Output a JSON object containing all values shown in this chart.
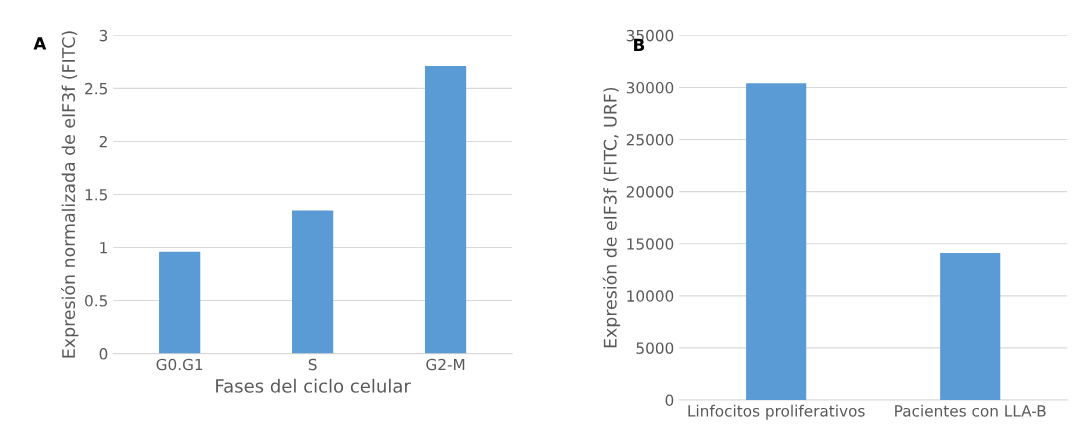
{
  "chart_data": [
    {
      "type": "bar",
      "title": "A",
      "xlabel": "Fases del ciclo celular",
      "ylabel": "Expresión normalizada de eIF3f (FITC)",
      "categories": [
        "G0.G1",
        "S",
        "G2-M"
      ],
      "values": [
        0.96,
        1.35,
        2.71
      ],
      "color": "#5b9bd5",
      "ylim": [
        0,
        3
      ],
      "yticks": [
        0,
        0.5,
        1,
        1.5,
        2,
        2.5,
        3
      ],
      "grid": "y"
    },
    {
      "type": "bar",
      "title": "B",
      "ylabel": "Expresión de eIF3f (FITC, URF)",
      "categories": [
        "Linfocitos proliferativos",
        "Pacientes con LLA-B"
      ],
      "values": [
        30400,
        14100
      ],
      "color": "#5b9bd5",
      "ylim": [
        0,
        35000
      ],
      "yticks": [
        0,
        5000,
        10000,
        15000,
        20000,
        25000,
        30000,
        35000
      ],
      "grid": "y"
    }
  ]
}
